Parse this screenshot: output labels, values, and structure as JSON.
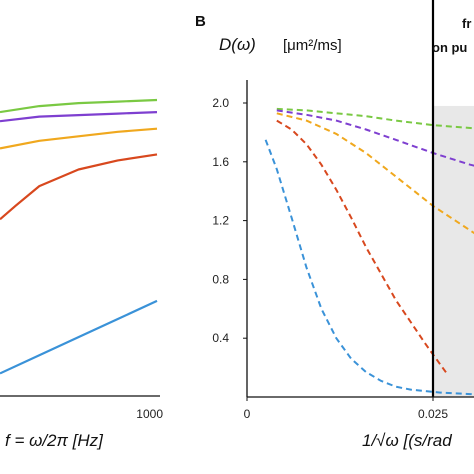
{
  "colors": {
    "green": "#7ac943",
    "purple": "#7e3fd0",
    "orange": "#f0a81e",
    "red": "#d8481e",
    "blue": "#3a92d8",
    "shade": "#e8e8e8"
  },
  "chart_data": [
    {
      "panel": "A",
      "type": "line",
      "xlabel": "f = ω/2π [Hz]",
      "xlim": [
        0,
        1000
      ],
      "ylim": [
        0,
        2.0
      ],
      "x_ticks": [
        "1000"
      ],
      "series": [
        {
          "color": "green",
          "style": "solid",
          "x": [
            0,
            250,
            500,
            750,
            1000
          ],
          "values": [
            1.88,
            1.92,
            1.94,
            1.95,
            1.96
          ]
        },
        {
          "color": "purple",
          "style": "solid",
          "x": [
            0,
            250,
            500,
            750,
            1000
          ],
          "values": [
            1.82,
            1.85,
            1.86,
            1.87,
            1.88
          ]
        },
        {
          "color": "orange",
          "style": "solid",
          "x": [
            0,
            250,
            500,
            750,
            1000
          ],
          "values": [
            1.64,
            1.69,
            1.72,
            1.75,
            1.77
          ]
        },
        {
          "color": "red",
          "style": "solid",
          "x": [
            0,
            100,
            250,
            500,
            750,
            1000
          ],
          "values": [
            1.17,
            1.26,
            1.39,
            1.5,
            1.56,
            1.6
          ]
        },
        {
          "color": "blue",
          "style": "solid",
          "x": [
            0,
            250,
            500,
            750,
            1000
          ],
          "values": [
            0.15,
            0.27,
            0.39,
            0.51,
            0.63
          ]
        }
      ]
    },
    {
      "panel": "B",
      "panel_label": "B",
      "type": "line",
      "title": "D(ω)",
      "title_unit": "[μm²/ms]",
      "xlabel": "1/√ω [(s/rad",
      "xlim": [
        0,
        0.039
      ],
      "ylim": [
        0,
        2.1
      ],
      "x_ticks": [
        {
          "value": 0,
          "label": "0"
        },
        {
          "value": 0.025,
          "label": "0.025"
        }
      ],
      "y_ticks": [
        {
          "value": 0.4,
          "label": "0.4"
        },
        {
          "value": 0.8,
          "label": "0.8"
        },
        {
          "value": 1.2,
          "label": "1.2"
        },
        {
          "value": 1.6,
          "label": "1.6"
        },
        {
          "value": 2.0,
          "label": "2.0"
        }
      ],
      "vline": 0.025,
      "annotation": [
        "fr",
        "on pu"
      ],
      "series": [
        {
          "color": "green",
          "style": "dashed",
          "x": [
            0.004,
            0.008,
            0.012,
            0.016,
            0.02,
            0.025,
            0.03,
            0.035,
            0.039
          ],
          "values": [
            1.96,
            1.95,
            1.93,
            1.91,
            1.88,
            1.85,
            1.83,
            1.81,
            1.79
          ]
        },
        {
          "color": "purple",
          "style": "dashed",
          "x": [
            0.004,
            0.008,
            0.012,
            0.016,
            0.02,
            0.025,
            0.03,
            0.035,
            0.039
          ],
          "values": [
            1.95,
            1.92,
            1.88,
            1.82,
            1.75,
            1.66,
            1.58,
            1.52,
            1.47
          ]
        },
        {
          "color": "orange",
          "style": "dashed",
          "x": [
            0.004,
            0.008,
            0.012,
            0.016,
            0.02,
            0.025,
            0.028,
            0.031,
            0.034,
            0.037,
            0.039
          ],
          "values": [
            1.93,
            1.88,
            1.79,
            1.66,
            1.5,
            1.3,
            1.2,
            1.1,
            0.99,
            0.88,
            0.82
          ]
        },
        {
          "color": "red",
          "style": "dashed",
          "x": [
            0.004,
            0.006,
            0.008,
            0.01,
            0.012,
            0.014,
            0.016,
            0.018,
            0.02,
            0.022,
            0.024,
            0.025,
            0.026,
            0.027
          ],
          "values": [
            1.88,
            1.82,
            1.72,
            1.58,
            1.41,
            1.22,
            1.02,
            0.84,
            0.66,
            0.51,
            0.36,
            0.29,
            0.22,
            0.15
          ]
        },
        {
          "color": "blue",
          "style": "dashed",
          "x": [
            0.0025,
            0.004,
            0.006,
            0.008,
            0.01,
            0.012,
            0.014,
            0.016,
            0.018,
            0.02,
            0.022,
            0.024,
            0.026,
            0.03,
            0.034,
            0.039
          ],
          "values": [
            1.75,
            1.55,
            1.22,
            0.88,
            0.6,
            0.4,
            0.26,
            0.17,
            0.11,
            0.07,
            0.05,
            0.04,
            0.03,
            0.02,
            0.01,
            0.01
          ]
        }
      ]
    }
  ]
}
